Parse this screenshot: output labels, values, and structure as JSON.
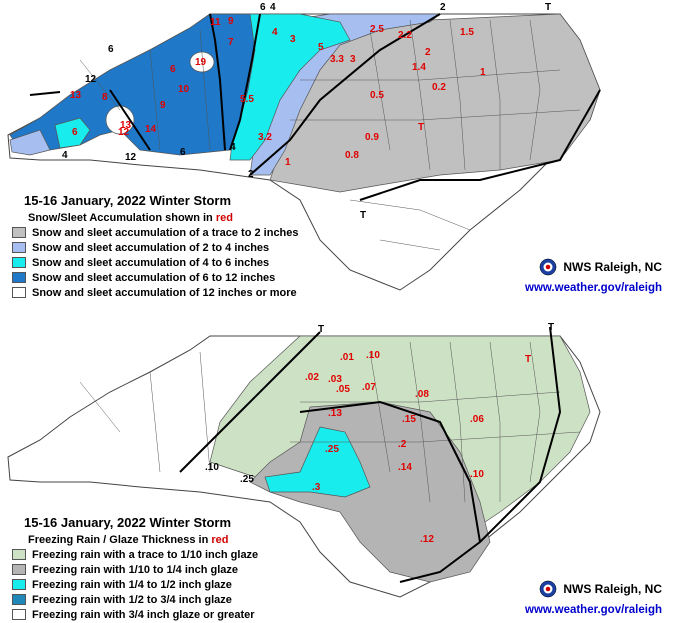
{
  "snow_panel": {
    "title": "15-16 January, 2022 Winter Storm",
    "subtitle_prefix": "Snow/Sleet Accumulation shown in",
    "subtitle_highlight": "red",
    "legend": [
      {
        "label": "Snow and sleet accumulation of a trace to 2 inches",
        "color": "#c0c0c0"
      },
      {
        "label": "Snow and sleet accumulation of 2 to 4 inches",
        "color": "#a6bff0"
      },
      {
        "label": "Snow and sleet accumulation of 4 to 6 inches",
        "color": "#19ecec"
      },
      {
        "label": "Snow and sleet accumulation of 6 to 12 inches",
        "color": "#1f78c8"
      },
      {
        "label": "Snow and sleet accumulation of 12 inches or more",
        "color": "#ffffff"
      }
    ],
    "office": "NWS Raleigh, NC",
    "website": "www.weather.gov/raleigh",
    "map_values": [
      "19",
      "11",
      "9",
      "7",
      "10",
      "9",
      "6",
      "8",
      "6",
      "13",
      "4",
      "3",
      "5",
      "3.3",
      "3",
      "2.5",
      "2.2",
      "2",
      "1.5",
      "1",
      "0.5",
      "1.4",
      "0.2",
      "0.9",
      "T",
      "12",
      "14",
      "13",
      "5.5",
      "3.2",
      "1",
      "0.8"
    ],
    "contour_labels": [
      "6",
      "4",
      "2",
      "T",
      "12",
      "6",
      "4",
      "12",
      "6",
      "4",
      "2",
      "T"
    ]
  },
  "ice_panel": {
    "title": "15-16 January, 2022 Winter Storm",
    "subtitle_prefix": "Freezing Rain / Glaze Thickness in",
    "subtitle_highlight": "red",
    "legend": [
      {
        "label": "Freezing rain with a trace to 1/10 inch glaze",
        "color": "#cde2c4"
      },
      {
        "label": "Freezing rain with 1/10 to 1/4 inch glaze",
        "color": "#b4b4b4"
      },
      {
        "label": "Freezing rain with 1/4 to 1/2 inch glaze",
        "color": "#19ecec"
      },
      {
        "label": "Freezing rain with 1/2 to 3/4 inch glaze",
        "color": "#1f88b8"
      },
      {
        "label": "Freezing rain with 3/4 inch glaze or greater",
        "color": "#ffffff"
      }
    ],
    "office": "NWS Raleigh, NC",
    "website": "www.weather.gov/raleigh",
    "map_values": [
      ".01",
      ".10",
      ".02",
      ".03",
      ".05",
      ".07",
      ".08",
      ".13",
      ".15",
      ".2",
      ".25",
      ".3",
      ".14",
      ".06",
      ".10",
      ".12",
      "T"
    ],
    "contour_labels": [
      "T",
      ".10",
      ".25",
      "T"
    ]
  },
  "colors": {
    "text_red": "#e00000",
    "link_blue": "#0000cc",
    "county_line": "#555555"
  }
}
